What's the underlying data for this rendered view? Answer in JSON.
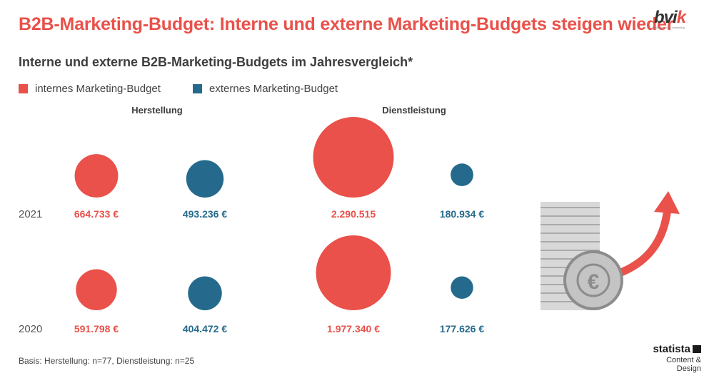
{
  "header": {
    "title": "B2B-Marketing-Budget: Interne und externe Marketing-Budgets steigen wieder",
    "subtitle": "Interne und externe B2B-Marketing-Budgets im Jahresvergleich*"
  },
  "logo": {
    "mark_a": "bvi",
    "mark_b": "k",
    "tagline": "bvik.org - b2b marketing",
    "icon": "bvik-logo-icon"
  },
  "legend": [
    {
      "label": "internes Marketing-Budget",
      "color": "#e9514a"
    },
    {
      "label": "externes Marketing-Budget",
      "color": "#256a8c"
    }
  ],
  "chart_data": {
    "type": "bubble",
    "groups": [
      "Herstellung",
      "Dienstleistung"
    ],
    "rows": [
      "2021",
      "2020"
    ],
    "series": [
      {
        "name": "internes Marketing-Budget",
        "color": "#e9514a",
        "values": {
          "Herstellung": {
            "2021": 664733,
            "2020": 591798
          },
          "Dienstleistung": {
            "2021": 2290515,
            "2020": 1977340
          }
        },
        "labels": {
          "Herstellung": {
            "2021": "664.733 €",
            "2020": "591.798 €"
          },
          "Dienstleistung": {
            "2021": "2.290.515",
            "2020": "1.977.340 €"
          }
        }
      },
      {
        "name": "externes Marketing-Budget",
        "color": "#256a8c",
        "values": {
          "Herstellung": {
            "2021": 493236,
            "2020": 404472
          },
          "Dienstleistung": {
            "2021": 180934,
            "2020": 177626
          }
        },
        "labels": {
          "Herstellung": {
            "2021": "493.236 €",
            "2020": "404.472 €"
          },
          "Dienstleistung": {
            "2021": "180.934 €",
            "2020": "177.626 €"
          }
        }
      }
    ]
  },
  "illustration": {
    "coin_symbol": "€",
    "icon": "coin-stack-arrow-icon",
    "arrow_color": "#e9514a"
  },
  "footer": {
    "note": "Basis: Herstellung: n=77, Dienstleistung: n=25"
  },
  "brand": {
    "name": "statista",
    "tagline": "Content & Design"
  }
}
